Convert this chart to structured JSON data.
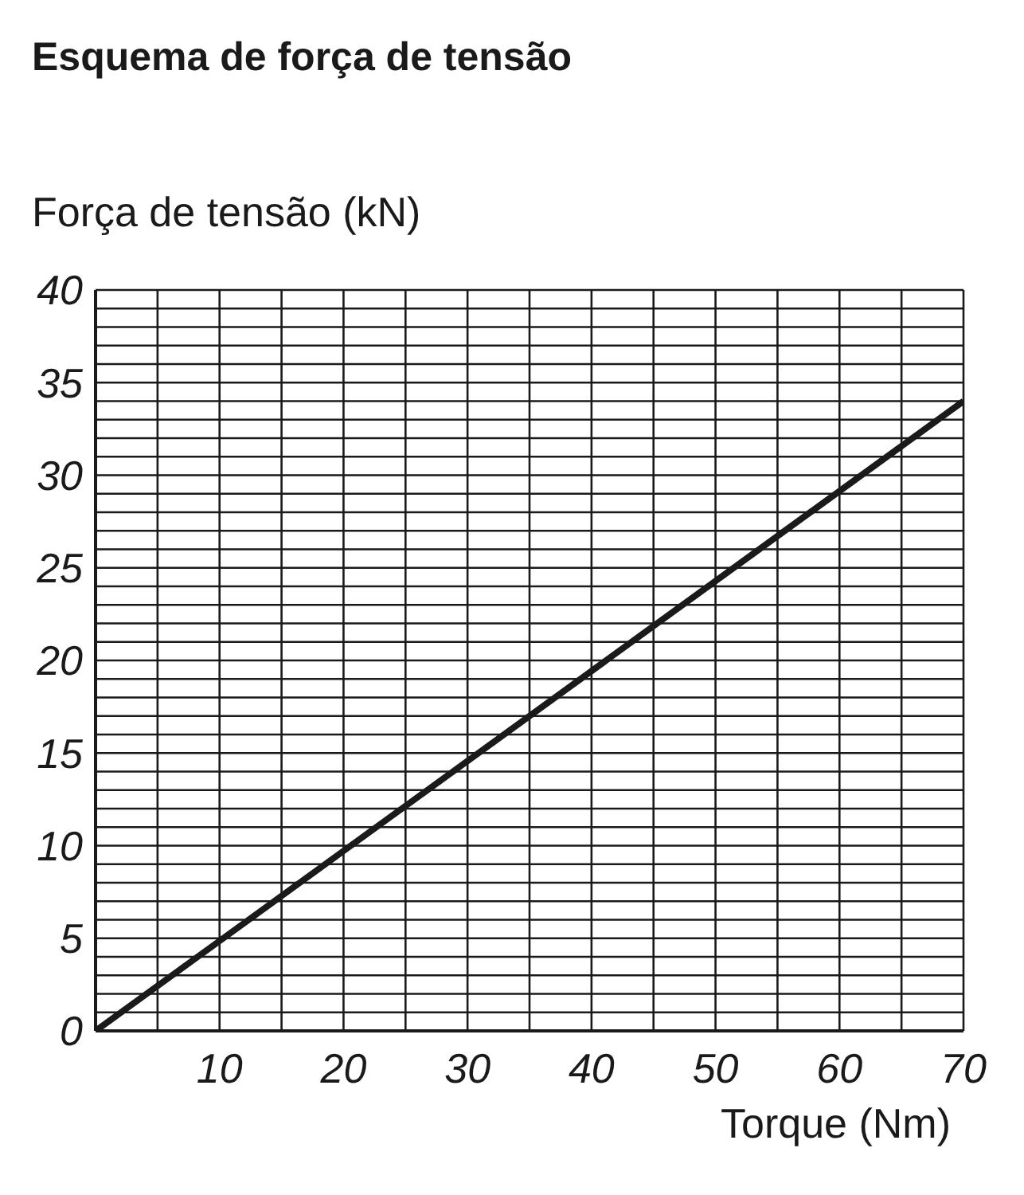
{
  "chart_data": {
    "type": "line",
    "title": "Esquema de força de tensão",
    "xlabel": "Torque (Nm)",
    "ylabel": "Força de tensão (kN)",
    "x": [
      0,
      70
    ],
    "series": [
      {
        "color": "#1a1a1a",
        "values": [
          0,
          34
        ]
      }
    ],
    "xlim": [
      0,
      70
    ],
    "xticks": [
      {
        "value": 0,
        "label": null
      },
      {
        "value": 5,
        "label": null
      },
      10,
      {
        "value": 15,
        "label": null
      },
      20,
      {
        "value": 25,
        "label": null
      },
      30,
      {
        "value": 35,
        "label": null
      },
      40,
      {
        "value": 45,
        "label": null
      },
      50,
      {
        "value": 55,
        "label": null
      },
      60,
      {
        "value": 65,
        "label": null
      },
      70
    ],
    "ylim": [
      0,
      40
    ],
    "yticks": [
      0,
      {
        "value": 1,
        "label": null
      },
      {
        "value": 2,
        "label": null
      },
      {
        "value": 3,
        "label": null
      },
      {
        "value": 4,
        "label": null
      },
      5,
      {
        "value": 6,
        "label": null
      },
      {
        "value": 7,
        "label": null
      },
      {
        "value": 8,
        "label": null
      },
      {
        "value": 9,
        "label": null
      },
      10,
      {
        "value": 11,
        "label": null
      },
      {
        "value": 12,
        "label": null
      },
      {
        "value": 13,
        "label": null
      },
      {
        "value": 14,
        "label": null
      },
      15,
      {
        "value": 16,
        "label": null
      },
      {
        "value": 17,
        "label": null
      },
      {
        "value": 18,
        "label": null
      },
      {
        "value": 19,
        "label": null
      },
      20,
      {
        "value": 21,
        "label": null
      },
      {
        "value": 22,
        "label": null
      },
      {
        "value": 23,
        "label": null
      },
      {
        "value": 24,
        "label": null
      },
      25,
      {
        "value": 26,
        "label": null
      },
      {
        "value": 27,
        "label": null
      },
      {
        "value": 28,
        "label": null
      },
      {
        "value": 29,
        "label": null
      },
      30,
      {
        "value": 31,
        "label": null
      },
      {
        "value": 32,
        "label": null
      },
      {
        "value": 33,
        "label": null
      },
      {
        "value": 34,
        "label": null
      },
      35,
      {
        "value": 36,
        "label": null
      },
      {
        "value": 37,
        "label": null
      },
      {
        "value": 38,
        "label": null
      },
      {
        "value": 39,
        "label": null
      },
      40
    ],
    "grid": true,
    "marker": "none",
    "line_style": "solid"
  }
}
